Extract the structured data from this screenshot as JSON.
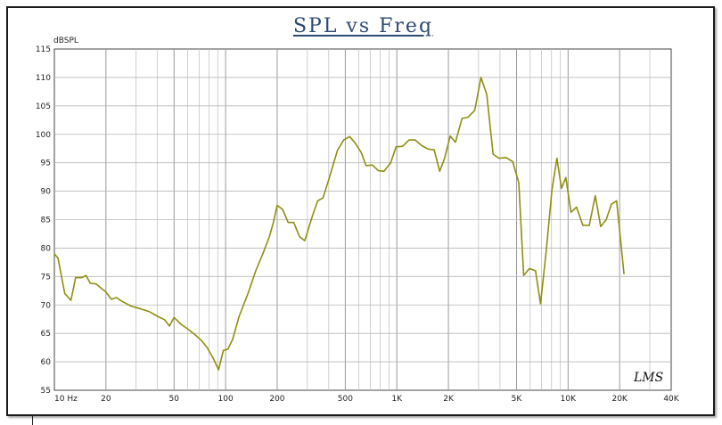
{
  "chart_data": {
    "type": "line",
    "title": "SPL vs Freq",
    "ylabel": "dBSPL",
    "xlabel": "",
    "xscale": "log",
    "xlim": [
      10,
      40000
    ],
    "ylim": [
      55,
      115
    ],
    "grid": true,
    "y_ticks": [
      55,
      60,
      65,
      70,
      75,
      80,
      85,
      90,
      95,
      100,
      105,
      110,
      115
    ],
    "x_ticks": [
      {
        "value": 10,
        "label": "10  Hz"
      },
      {
        "value": 20,
        "label": "20"
      },
      {
        "value": 50,
        "label": "50"
      },
      {
        "value": 100,
        "label": "100"
      },
      {
        "value": 200,
        "label": "200"
      },
      {
        "value": 500,
        "label": "500"
      },
      {
        "value": 1000,
        "label": "1K"
      },
      {
        "value": 2000,
        "label": "2K"
      },
      {
        "value": 5000,
        "label": "5K"
      },
      {
        "value": 10000,
        "label": "10K"
      },
      {
        "value": 20000,
        "label": "20K"
      },
      {
        "value": 40000,
        "label": "40K"
      }
    ],
    "series": [
      {
        "color": "#8f8f10",
        "points": [
          [
            10,
            79
          ],
          [
            10.5,
            78.2
          ],
          [
            11.5,
            72
          ],
          [
            12.5,
            70.8
          ],
          [
            13.3,
            74.8
          ],
          [
            14.5,
            74.8
          ],
          [
            15.3,
            75.2
          ],
          [
            16.2,
            73.8
          ],
          [
            17.5,
            73.7
          ],
          [
            19,
            72.8
          ],
          [
            20,
            72.3
          ],
          [
            21.5,
            71
          ],
          [
            23,
            71.3
          ],
          [
            25,
            70.6
          ],
          [
            28,
            69.8
          ],
          [
            32,
            69.3
          ],
          [
            36,
            68.8
          ],
          [
            40,
            68.0
          ],
          [
            44,
            67.4
          ],
          [
            47,
            66.3
          ],
          [
            50,
            67.8
          ],
          [
            55,
            66.6
          ],
          [
            60,
            65.8
          ],
          [
            66,
            64.8
          ],
          [
            72,
            63.8
          ],
          [
            78,
            62.5
          ],
          [
            85,
            60.5
          ],
          [
            91,
            58.6
          ],
          [
            97,
            62.0
          ],
          [
            103,
            62.2
          ],
          [
            110,
            64.0
          ],
          [
            120,
            68.0
          ],
          [
            135,
            72.0
          ],
          [
            150,
            76.0
          ],
          [
            165,
            79.0
          ],
          [
            180,
            82.0
          ],
          [
            190,
            84.5
          ],
          [
            200,
            87.5
          ],
          [
            215,
            86.8
          ],
          [
            232,
            84.5
          ],
          [
            250,
            84.5
          ],
          [
            270,
            82.0
          ],
          [
            290,
            81.3
          ],
          [
            320,
            85.5
          ],
          [
            345,
            88.3
          ],
          [
            370,
            88.8
          ],
          [
            400,
            92.0
          ],
          [
            450,
            97.2
          ],
          [
            490,
            99.0
          ],
          [
            530,
            99.6
          ],
          [
            570,
            98.5
          ],
          [
            620,
            96.8
          ],
          [
            660,
            94.5
          ],
          [
            720,
            94.6
          ],
          [
            780,
            93.6
          ],
          [
            840,
            93.5
          ],
          [
            920,
            95.0
          ],
          [
            990,
            97.8
          ],
          [
            1080,
            97.9
          ],
          [
            1180,
            99.0
          ],
          [
            1280,
            99.0
          ],
          [
            1400,
            98.0
          ],
          [
            1520,
            97.4
          ],
          [
            1650,
            97.3
          ],
          [
            1780,
            93.5
          ],
          [
            1900,
            95.8
          ],
          [
            2050,
            99.7
          ],
          [
            2200,
            98.6
          ],
          [
            2400,
            102.8
          ],
          [
            2600,
            103.0
          ],
          [
            2850,
            104.2
          ],
          [
            3100,
            110.0
          ],
          [
            3350,
            107.0
          ],
          [
            3650,
            96.5
          ],
          [
            3950,
            95.8
          ],
          [
            4350,
            95.9
          ],
          [
            4750,
            95.2
          ],
          [
            5150,
            91.5
          ],
          [
            5500,
            75.2
          ],
          [
            5950,
            76.4
          ],
          [
            6450,
            76.0
          ],
          [
            6900,
            70.2
          ],
          [
            7450,
            79.5
          ],
          [
            8050,
            90.2
          ],
          [
            8600,
            95.8
          ],
          [
            9150,
            90.5
          ],
          [
            9700,
            92.4
          ],
          [
            10400,
            86.3
          ],
          [
            11200,
            87.2
          ],
          [
            12200,
            84.0
          ],
          [
            13300,
            84.0
          ],
          [
            14400,
            89.2
          ],
          [
            15500,
            83.8
          ],
          [
            16700,
            85.0
          ],
          [
            17900,
            87.7
          ],
          [
            19200,
            88.3
          ],
          [
            21200,
            75.5
          ]
        ]
      }
    ]
  },
  "annotations": {
    "signature": "LMS"
  }
}
